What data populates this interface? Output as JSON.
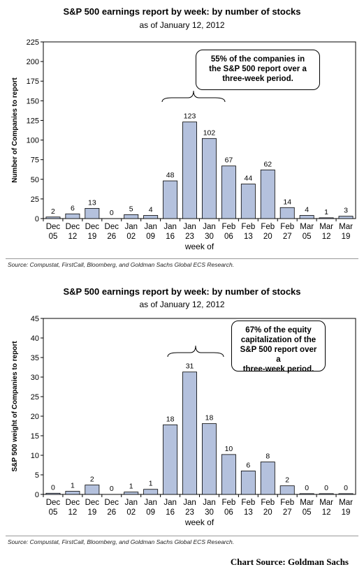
{
  "chart_data": [
    {
      "type": "bar",
      "title": "S&P 500 earnings report by week: by number of stocks",
      "subtitle": "as of January 12, 2012",
      "xlabel": "week of",
      "ylabel": "Number of Companies to report",
      "ylim": [
        0,
        225
      ],
      "yticks": [
        "0",
        "25",
        "50",
        "75",
        "100",
        "125",
        "150",
        "175",
        "200",
        "225"
      ],
      "ytick_values": [
        0,
        25,
        50,
        75,
        100,
        125,
        150,
        175,
        200,
        225
      ],
      "categories": [
        [
          "Dec",
          "05"
        ],
        [
          "Dec",
          "12"
        ],
        [
          "Dec",
          "19"
        ],
        [
          "Dec",
          "26"
        ],
        [
          "Jan",
          "02"
        ],
        [
          "Jan",
          "09"
        ],
        [
          "Jan",
          "16"
        ],
        [
          "Jan",
          "23"
        ],
        [
          "Jan",
          "30"
        ],
        [
          "Feb",
          "06"
        ],
        [
          "Feb",
          "13"
        ],
        [
          "Feb",
          "20"
        ],
        [
          "Feb",
          "27"
        ],
        [
          "Mar",
          "05"
        ],
        [
          "Mar",
          "12"
        ],
        [
          "Mar",
          "19"
        ]
      ],
      "values": [
        2,
        6,
        13,
        0,
        5,
        4,
        48,
        123,
        102,
        67,
        44,
        62,
        14,
        4,
        1,
        3
      ],
      "bar_color": "#b4c1dd",
      "annotation": [
        "55% of the companies in",
        "the S&P 500 report over a",
        "three-week period."
      ],
      "source": "Source: Compustat, FirstCall, Bloomberg, and Goldman Sachs Global ECS Research."
    },
    {
      "type": "bar",
      "title": "S&P 500 earnings report by week: by number of stocks",
      "subtitle": "as of January 12, 2012",
      "xlabel": "week of",
      "ylabel": "S&P 500 weight of Companies to report",
      "ylim": [
        0,
        45
      ],
      "yticks": [
        "0",
        "5",
        "10",
        "15",
        "20",
        "25",
        "30",
        "35",
        "40",
        "45"
      ],
      "ytick_values": [
        0,
        5,
        10,
        15,
        20,
        25,
        30,
        35,
        40,
        45
      ],
      "categories": [
        [
          "Dec",
          "05"
        ],
        [
          "Dec",
          "12"
        ],
        [
          "Dec",
          "19"
        ],
        [
          "Dec",
          "26"
        ],
        [
          "Jan",
          "02"
        ],
        [
          "Jan",
          "09"
        ],
        [
          "Jan",
          "16"
        ],
        [
          "Jan",
          "23"
        ],
        [
          "Jan",
          "30"
        ],
        [
          "Feb",
          "06"
        ],
        [
          "Feb",
          "13"
        ],
        [
          "Feb",
          "20"
        ],
        [
          "Feb",
          "27"
        ],
        [
          "Mar",
          "05"
        ],
        [
          "Mar",
          "12"
        ],
        [
          "Mar",
          "19"
        ]
      ],
      "values": [
        0.3,
        0.8,
        2.4,
        0,
        0.6,
        1.3,
        17.8,
        31.3,
        18.1,
        10.2,
        6.0,
        8.3,
        2.2,
        0.2,
        0.2,
        0.2
      ],
      "value_labels": [
        "0",
        "1",
        "2",
        "0",
        "1",
        "1",
        "18",
        "31",
        "18",
        "10",
        "6",
        "8",
        "2",
        "0",
        "0",
        "0"
      ],
      "bar_color": "#b4c1dd",
      "annotation": [
        "67% of the equity",
        "capitalization of the",
        "S&P 500 report over a",
        "three-week period."
      ],
      "source": "Source: Compustat, FirstCall, Bloomberg, and Goldman Sachs Global ECS Research."
    }
  ],
  "credit": "Chart Source:  Goldman Sachs"
}
